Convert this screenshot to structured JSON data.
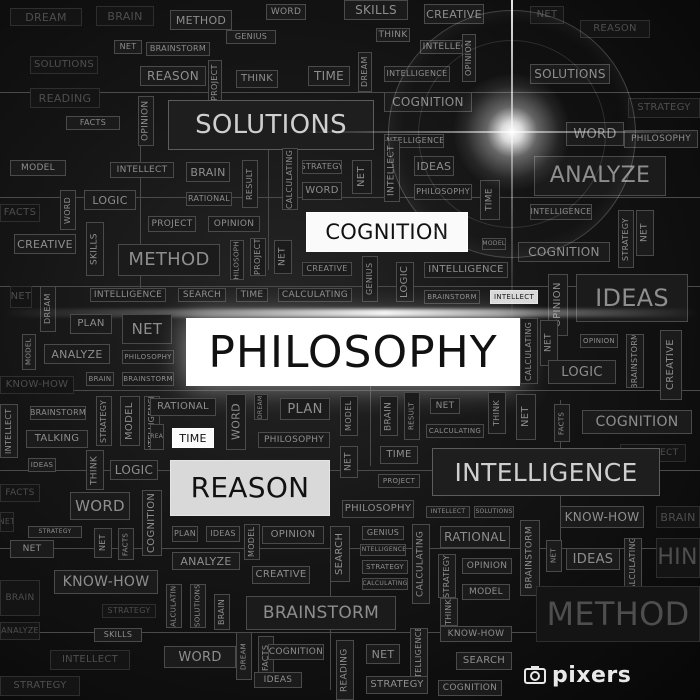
{
  "title": "PHILOSOPHY",
  "watermark": "pixers",
  "words": {
    "solutions": "SOLUTIONS",
    "cognition": "COGNITION",
    "analyze": "ANALYZE",
    "ideas": "IDEAS",
    "method": "METHOD",
    "logic": "LOGIC",
    "intelligence": "INTELLIGENCE",
    "reason": "REASON",
    "plan": "PLAN",
    "net": "NET",
    "time": "TIME",
    "word": "WORD",
    "brainstorm": "BRAINSTORM",
    "knowhow": "KNOW-HOW",
    "creative": "CREATIVE",
    "reading": "READING",
    "think": "THINK",
    "project": "PROJECT",
    "genius": "GENIUS",
    "dream": "DREAM",
    "skills": "SKILLS",
    "opinion": "OPINION",
    "rational": "RATIONAL",
    "calculating": "CALCULATING",
    "search": "SEARCH",
    "intellect": "INTELLECT",
    "model": "MODEL",
    "strategy": "STRATEGY",
    "brain": "BRAIN",
    "talking": "TALKING",
    "result": "RESULT",
    "facts": "FACTS",
    "philosophy_small": "PHILOSOPHY",
    "skills_small": "SKILLS"
  },
  "colors": {
    "background": "#0d0d0d",
    "tag_border": "#4a4a4a",
    "tag_text": "#8e8e8e",
    "title_bg": "#ffffff",
    "title_text": "#111111"
  }
}
